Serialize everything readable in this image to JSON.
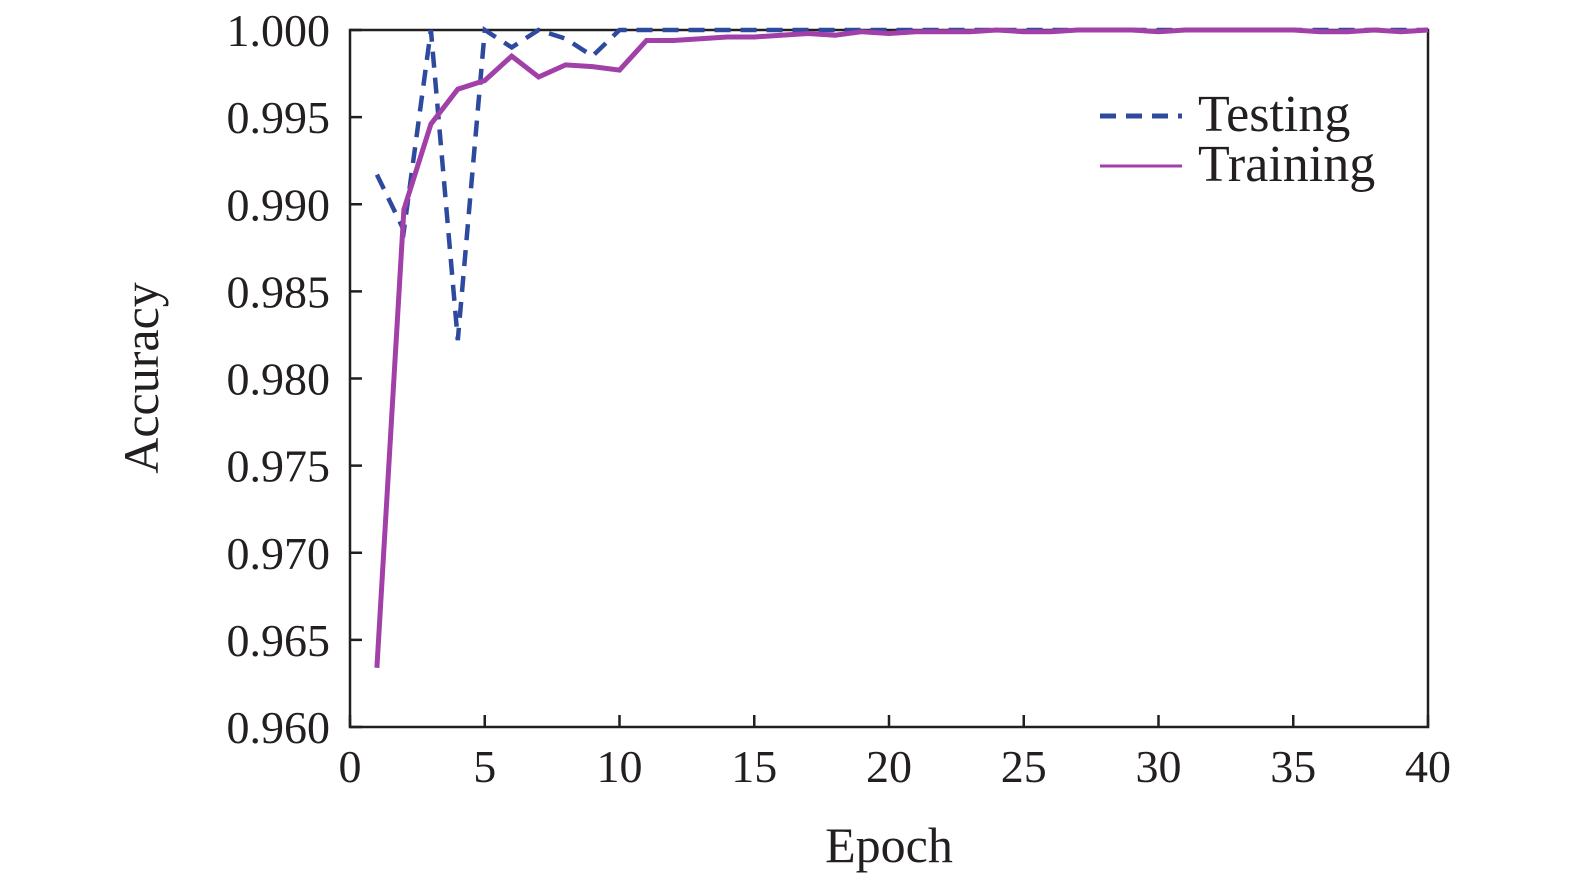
{
  "chart_data": {
    "type": "line",
    "xlabel": "Epoch",
    "ylabel": "Accuracy",
    "xlim": [
      0,
      40
    ],
    "ylim": [
      0.96,
      1.0
    ],
    "xticks": [
      "0",
      "5",
      "10",
      "15",
      "20",
      "25",
      "30",
      "35",
      "40"
    ],
    "yticks": [
      "0.960",
      "0.965",
      "0.970",
      "0.975",
      "0.980",
      "0.985",
      "0.990",
      "0.995",
      "1.000"
    ],
    "grid": false,
    "legend_position": "top-right",
    "series": [
      {
        "name": "Testing",
        "color": "#2e4a9e",
        "style": "dashed",
        "x": [
          1,
          2,
          3,
          4,
          5,
          6,
          7,
          8,
          9,
          10,
          11,
          12,
          13,
          14,
          15,
          16,
          17,
          18,
          19,
          20,
          21,
          22,
          23,
          24,
          25,
          26,
          27,
          28,
          29,
          30,
          31,
          32,
          33,
          34,
          35,
          36,
          37,
          38,
          39,
          40
        ],
        "values": [
          0.9917,
          0.9885,
          1.0,
          0.9822,
          1.0,
          0.999,
          1.0,
          0.9995,
          0.9985,
          1.0,
          1.0,
          1.0,
          1.0,
          1.0,
          1.0,
          1.0,
          1.0,
          1.0,
          1.0,
          1.0,
          1.0,
          1.0,
          1.0,
          1.0,
          1.0,
          1.0,
          1.0,
          1.0,
          1.0,
          1.0,
          1.0,
          1.0,
          1.0,
          1.0,
          1.0,
          1.0,
          1.0,
          1.0,
          1.0,
          1.0
        ]
      },
      {
        "name": "Training",
        "color": "#a040a8",
        "style": "solid",
        "x": [
          1,
          2,
          3,
          4,
          5,
          6,
          7,
          8,
          9,
          10,
          11,
          12,
          13,
          14,
          15,
          16,
          17,
          18,
          19,
          20,
          21,
          22,
          23,
          24,
          25,
          26,
          27,
          28,
          29,
          30,
          31,
          32,
          33,
          34,
          35,
          36,
          37,
          38,
          39,
          40
        ],
        "values": [
          0.9634,
          0.9897,
          0.9946,
          0.9966,
          0.9971,
          0.9985,
          0.9973,
          0.998,
          0.9979,
          0.9977,
          0.9994,
          0.9994,
          0.9995,
          0.9996,
          0.9996,
          0.9997,
          0.9998,
          0.9997,
          0.9999,
          0.9998,
          0.9999,
          0.9999,
          0.9999,
          1.0,
          0.9999,
          0.9999,
          1.0,
          1.0,
          1.0,
          0.9999,
          1.0,
          1.0,
          1.0,
          1.0,
          1.0,
          0.9999,
          0.9999,
          1.0,
          0.9999,
          1.0
        ]
      }
    ]
  }
}
